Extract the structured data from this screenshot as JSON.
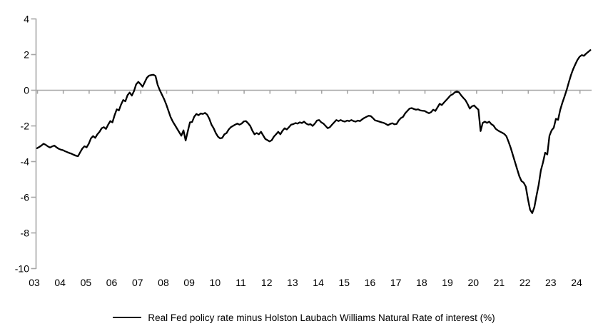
{
  "chart_data": {
    "type": "line",
    "title": "",
    "legend": "Real Fed policy rate minus Holston Laubach Williams Natural Rate of interest (%)",
    "legend_position": "bottom-center",
    "grid": false,
    "zero_line": true,
    "colors": {
      "line": "#000000",
      "axis": "#a6a6a6",
      "text": "#000000",
      "background": "#ffffff"
    },
    "x_start": "2003-01",
    "x_end": "2024-06",
    "x_frequency": "monthly",
    "xlabel": "",
    "ylabel": "",
    "ylim": [
      -10,
      4
    ],
    "y_ticks": [
      4,
      2,
      0,
      -2,
      -4,
      -6,
      -8,
      -10
    ],
    "x_tick_labels": [
      "03",
      "04",
      "05",
      "06",
      "07",
      "08",
      "09",
      "10",
      "11",
      "12",
      "13",
      "14",
      "15",
      "16",
      "17",
      "18",
      "19",
      "20",
      "21",
      "22",
      "23",
      "24"
    ],
    "series_name": "Real Fed policy rate minus Holston Laubach Williams Natural Rate of interest (%)",
    "values": [
      -3.25,
      -3.18,
      -3.1,
      -3.0,
      -3.06,
      -3.15,
      -3.21,
      -3.15,
      -3.1,
      -3.2,
      -3.28,
      -3.33,
      -3.36,
      -3.42,
      -3.47,
      -3.52,
      -3.56,
      -3.62,
      -3.67,
      -3.7,
      -3.48,
      -3.27,
      -3.14,
      -3.2,
      -3.0,
      -2.7,
      -2.57,
      -2.67,
      -2.47,
      -2.33,
      -2.13,
      -2.07,
      -2.17,
      -1.93,
      -1.73,
      -1.8,
      -1.4,
      -1.07,
      -1.13,
      -0.8,
      -0.55,
      -0.62,
      -0.28,
      -0.13,
      -0.3,
      -0.05,
      0.33,
      0.47,
      0.35,
      0.2,
      0.45,
      0.7,
      0.82,
      0.85,
      0.87,
      0.8,
      0.3,
      0.0,
      -0.25,
      -0.5,
      -0.8,
      -1.15,
      -1.5,
      -1.75,
      -1.95,
      -2.15,
      -2.35,
      -2.55,
      -2.25,
      -2.82,
      -2.3,
      -1.8,
      -1.78,
      -1.48,
      -1.33,
      -1.4,
      -1.3,
      -1.33,
      -1.27,
      -1.37,
      -1.6,
      -1.93,
      -2.13,
      -2.4,
      -2.6,
      -2.7,
      -2.67,
      -2.47,
      -2.4,
      -2.2,
      -2.07,
      -2.0,
      -1.93,
      -1.87,
      -1.93,
      -1.87,
      -1.75,
      -1.73,
      -1.85,
      -2.0,
      -2.27,
      -2.47,
      -2.4,
      -2.47,
      -2.33,
      -2.53,
      -2.73,
      -2.8,
      -2.87,
      -2.8,
      -2.6,
      -2.47,
      -2.33,
      -2.47,
      -2.27,
      -2.13,
      -2.2,
      -2.07,
      -1.93,
      -1.9,
      -1.84,
      -1.87,
      -1.8,
      -1.84,
      -1.76,
      -1.87,
      -1.93,
      -1.9,
      -2.0,
      -1.87,
      -1.7,
      -1.67,
      -1.8,
      -1.87,
      -2.0,
      -2.13,
      -2.07,
      -1.93,
      -1.8,
      -1.67,
      -1.73,
      -1.67,
      -1.73,
      -1.76,
      -1.7,
      -1.73,
      -1.67,
      -1.73,
      -1.76,
      -1.7,
      -1.73,
      -1.63,
      -1.55,
      -1.49,
      -1.43,
      -1.45,
      -1.56,
      -1.69,
      -1.72,
      -1.76,
      -1.8,
      -1.83,
      -1.89,
      -1.96,
      -1.89,
      -1.85,
      -1.91,
      -1.89,
      -1.69,
      -1.56,
      -1.49,
      -1.29,
      -1.16,
      -1.03,
      -1.0,
      -1.05,
      -1.09,
      -1.07,
      -1.13,
      -1.15,
      -1.16,
      -1.23,
      -1.29,
      -1.23,
      -1.09,
      -1.16,
      -0.96,
      -0.76,
      -0.83,
      -0.69,
      -0.56,
      -0.43,
      -0.29,
      -0.23,
      -0.12,
      -0.07,
      -0.12,
      -0.29,
      -0.43,
      -0.56,
      -0.78,
      -1.03,
      -0.9,
      -0.85,
      -0.98,
      -1.09,
      -2.29,
      -1.83,
      -1.76,
      -1.83,
      -1.76,
      -1.9,
      -1.98,
      -2.16,
      -2.25,
      -2.32,
      -2.38,
      -2.45,
      -2.58,
      -2.89,
      -3.23,
      -3.63,
      -4.03,
      -4.43,
      -4.82,
      -5.09,
      -5.18,
      -5.4,
      -6.1,
      -6.7,
      -6.89,
      -6.55,
      -5.9,
      -5.3,
      -4.5,
      -4.05,
      -3.5,
      -3.6,
      -2.55,
      -2.25,
      -2.1,
      -1.6,
      -1.66,
      -1.1,
      -0.7,
      -0.35,
      0.02,
      0.45,
      0.85,
      1.18,
      1.45,
      1.7,
      1.88,
      1.97,
      1.93,
      2.05,
      2.15,
      2.25
    ]
  }
}
